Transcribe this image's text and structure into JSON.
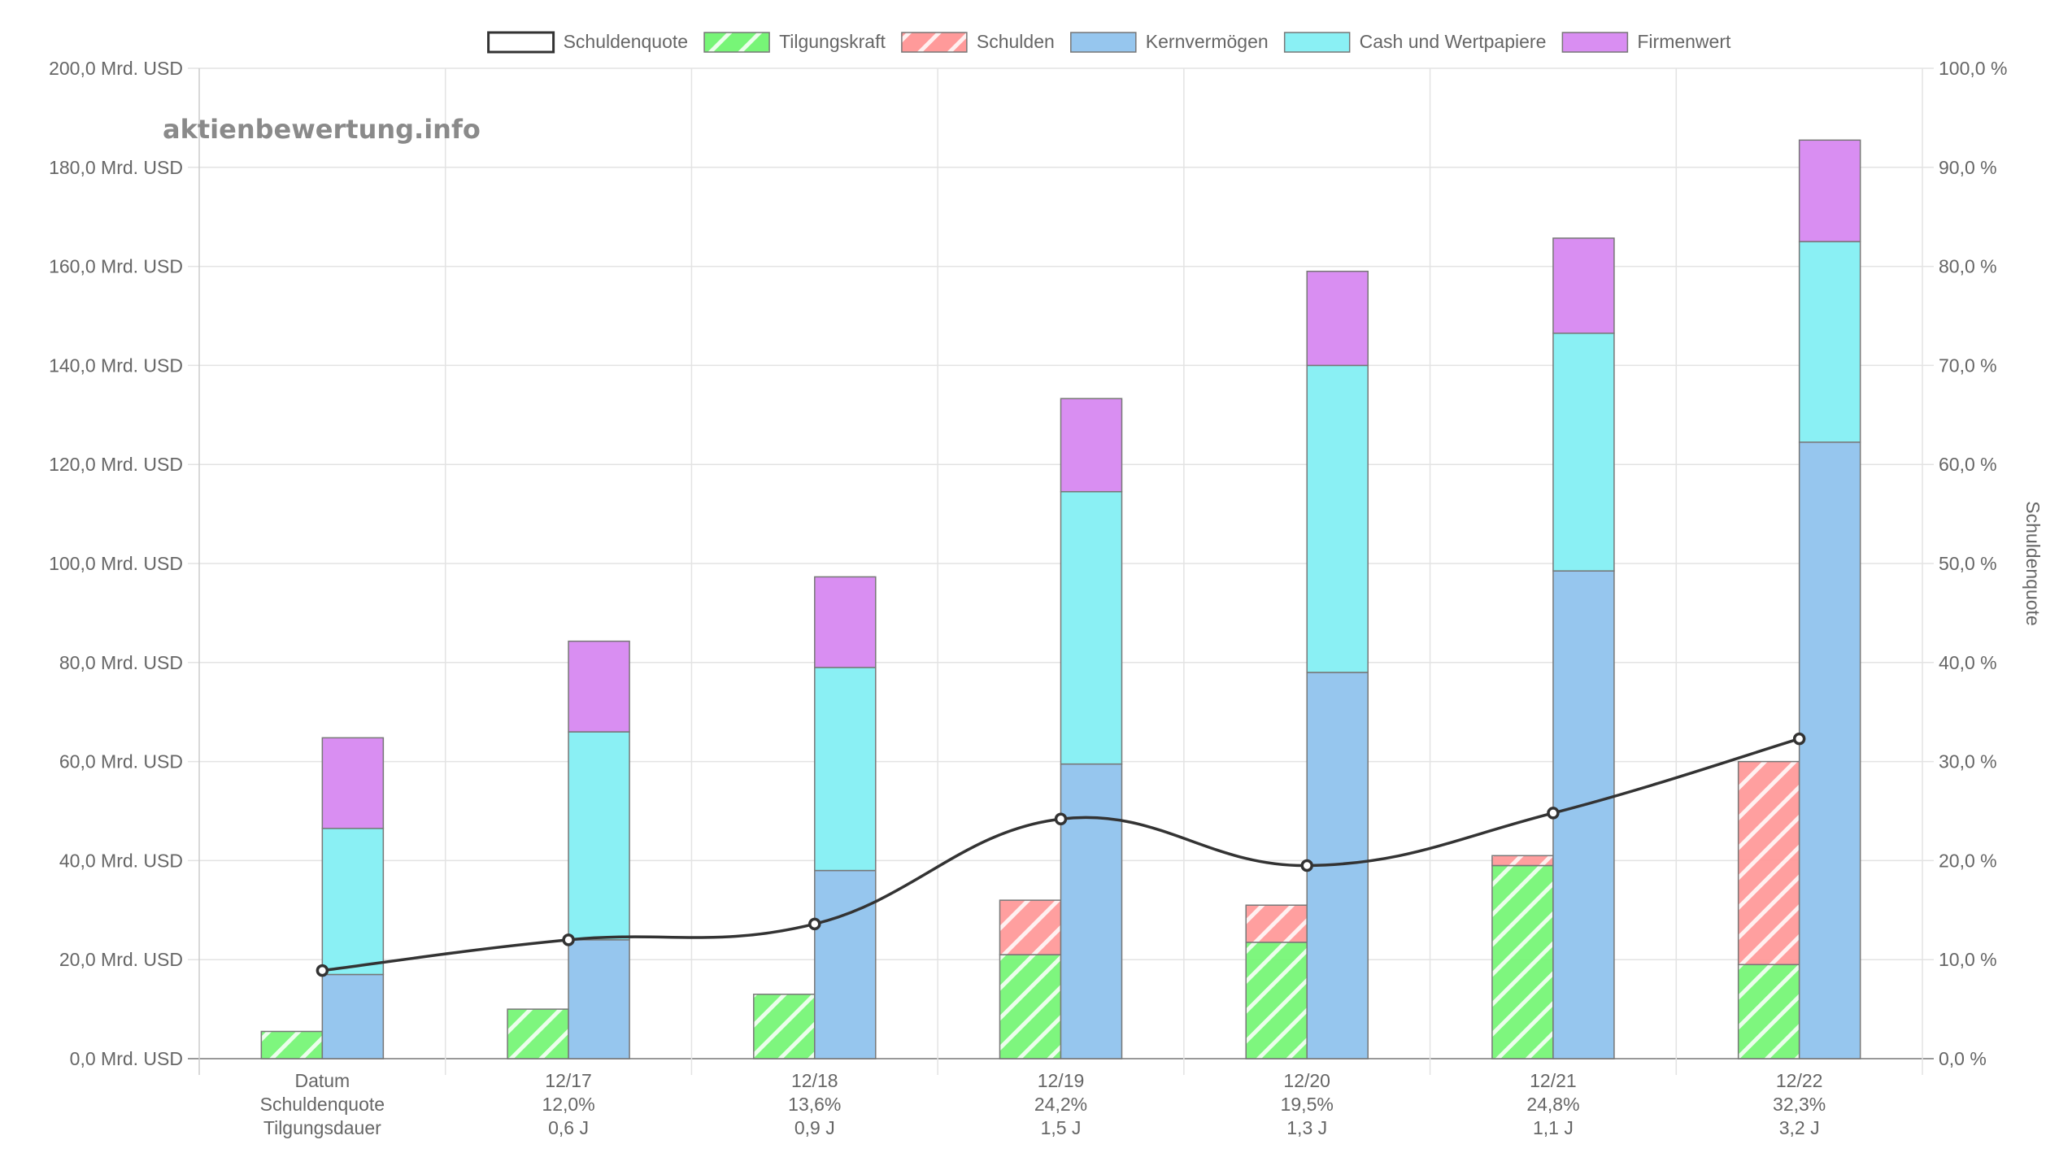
{
  "watermark": "aktienbewertung.info",
  "chart_data": {
    "type": "bar",
    "categories": [
      [
        "Datum",
        "Schuldenquote",
        "Tilgungsdauer"
      ],
      [
        "12/17",
        "12,0%",
        "0,6 J"
      ],
      [
        "12/18",
        "13,6%",
        "0,9 J"
      ],
      [
        "12/19",
        "24,2%",
        "1,5 J"
      ],
      [
        "12/20",
        "19,5%",
        "1,3 J"
      ],
      [
        "12/21",
        "24,8%",
        "1,1 J"
      ],
      [
        "12/22",
        "32,3%",
        "3,2 J"
      ]
    ],
    "legend": [
      {
        "name": "Schuldenquote",
        "kind": "line",
        "fill": "#ffffff",
        "stroke": "#333333"
      },
      {
        "name": "Tilgungskraft",
        "kind": "hatch",
        "fill": "#77f577",
        "stroke": "#4caf50"
      },
      {
        "name": "Schulden",
        "kind": "hatch",
        "fill": "#ff9a9a",
        "stroke": "#e57373"
      },
      {
        "name": "Kernvermögen",
        "kind": "solid",
        "fill": "#96c6ee",
        "stroke": "#5b8fc7"
      },
      {
        "name": "Cash und Wertpapiere",
        "kind": "solid",
        "fill": "#8af0f4",
        "stroke": "#4fc3cf"
      },
      {
        "name": "Firmenwert",
        "kind": "solid",
        "fill": "#d98ef2",
        "stroke": "#a855c7"
      }
    ],
    "left_bars": {
      "Tilgungskraft": [
        5.5,
        10.0,
        13.0,
        21.0,
        23.5,
        39.0,
        19.0
      ],
      "Schulden": [
        0,
        0,
        0,
        11.0,
        7.5,
        2.0,
        41.0
      ]
    },
    "right_bars": {
      "Kernvermögen": [
        17.0,
        24.0,
        38.0,
        59.5,
        78.0,
        98.5,
        124.5
      ],
      "Cash und Wertpapiere": [
        29.5,
        42.0,
        41.0,
        55.0,
        62.0,
        48.0,
        40.5
      ],
      "Firmenwert": [
        18.3,
        18.3,
        18.3,
        18.8,
        19.0,
        19.2,
        20.5
      ]
    },
    "line": {
      "name": "Schuldenquote",
      "values": [
        8.9,
        12.0,
        13.6,
        24.2,
        19.5,
        24.8,
        32.3
      ]
    },
    "y_left": {
      "ylim": [
        0,
        200
      ],
      "ticks": [
        "0,0 Mrd. USD",
        "20,0 Mrd. USD",
        "40,0 Mrd. USD",
        "60,0 Mrd. USD",
        "80,0 Mrd. USD",
        "100,0 Mrd. USD",
        "120,0 Mrd. USD",
        "140,0 Mrd. USD",
        "160,0 Mrd. USD",
        "180,0 Mrd. USD",
        "200,0 Mrd. USD"
      ]
    },
    "y_right": {
      "label": "Schuldenquote",
      "ylim": [
        0,
        100
      ],
      "ticks": [
        "0,0 %",
        "10,0 %",
        "20,0 %",
        "30,0 %",
        "40,0 %",
        "50,0 %",
        "60,0 %",
        "70,0 %",
        "80,0 %",
        "90,0 %",
        "100,0 %"
      ]
    },
    "grid": true,
    "legend_position": "top"
  }
}
